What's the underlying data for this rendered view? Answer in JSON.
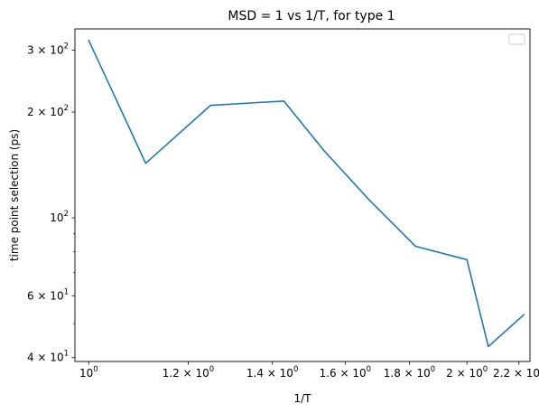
{
  "chart_data": {
    "type": "line",
    "title": "MSD = 1 vs 1/T, for type 1",
    "xlabel": "1/T",
    "ylabel": "time point selection (ps)",
    "xscale": "log",
    "yscale": "log",
    "xlim": [
      0.975,
      2.245
    ],
    "ylim": [
      39,
      345
    ],
    "grid": false,
    "legend": "upper right (empty)",
    "line_color": "#1f77b4",
    "series": [
      {
        "x": [
          1.0,
          1.11,
          1.25,
          1.43,
          1.54,
          1.67,
          1.82,
          2.0,
          2.08,
          2.22
        ],
        "y": [
          320,
          143,
          209,
          215,
          155,
          113,
          83,
          76,
          43,
          53
        ]
      }
    ],
    "xticks": [
      {
        "value": 1.0,
        "base": "10",
        "exp": "0"
      },
      {
        "value": 1.2,
        "base": "1.2 × 10",
        "exp": "0"
      },
      {
        "value": 1.4,
        "base": "1.4 × 10",
        "exp": "0"
      },
      {
        "value": 1.6,
        "base": "1.6 × 10",
        "exp": "0"
      },
      {
        "value": 1.8,
        "base": "1.8 × 10",
        "exp": "0"
      },
      {
        "value": 2.0,
        "base": "2 × 10",
        "exp": "0"
      },
      {
        "value": 2.2,
        "base": "2.2 × 10",
        "exp": "0"
      }
    ],
    "yticks": [
      {
        "value": 40,
        "base": "4 × 10",
        "exp": "1"
      },
      {
        "value": 60,
        "base": "6 × 10",
        "exp": "1"
      },
      {
        "value": 100,
        "base": "10",
        "exp": "2"
      },
      {
        "value": 200,
        "base": "2 × 10",
        "exp": "2"
      },
      {
        "value": 300,
        "base": "3 × 10",
        "exp": "2"
      }
    ],
    "yminor": [
      50,
      70,
      80,
      90
    ]
  }
}
